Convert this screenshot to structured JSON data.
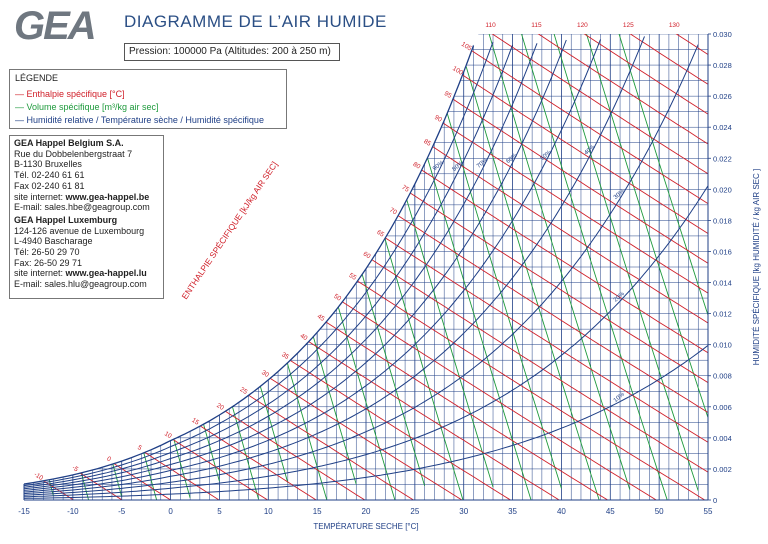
{
  "brand": "GEA",
  "title": "DIAGRAMME DE L’AIR HUMIDE",
  "pressure_label": "Pression: 100000 Pa (Altitudes: 200 à 250 m)",
  "legend": {
    "title": "LÉGENDE",
    "items": [
      {
        "text": "— Enthalpie spécifique [°C]",
        "color": "#d0202a"
      },
      {
        "text": "— Volume spécifique [m³/kg air sec]",
        "color": "#1e9a3c"
      },
      {
        "text": "— Humidité relative / Température sèche / Humidité spécifique",
        "color": "#1f3f86"
      }
    ]
  },
  "contacts": [
    {
      "company": "GEA Happel Belgium S.A.",
      "lines": [
        "Rue du Dobbelenbergstraat 7",
        "B-1130 Bruxelles",
        "Tél. 02-240 61 61",
        "Fax 02-240 61 81"
      ],
      "site_prefix": "site internet: ",
      "site": "www.gea-happel.be",
      "email": "E-mail: sales.hbe@geagroup.com"
    },
    {
      "company": "GEA Happel Luxemburg",
      "lines": [
        "124-126 avenue de Luxembourg",
        "L-4940 Bascharage",
        "Tél: 26-50 29 70",
        "Fax: 26-50 29 71"
      ],
      "site_prefix": "site internet: ",
      "site": "www.gea-happel.lu",
      "email": "E-mail: sales.hlu@geagroup.com"
    }
  ],
  "chart_data": {
    "type": "psychrometric",
    "xlabel": "TEMPÉRATURE SECHE [°C]",
    "ylabel": "HUMIDITÉ SPÉCIFIQUE [kg HUMIDITÉ / kg AIR SEC ]",
    "enthalpy_axis_label": "ENTHALPIE SPÉCIFIQUE [kJ/kg AIR SEC]",
    "xlim": [
      -15,
      55
    ],
    "ylim": [
      0,
      0.03
    ],
    "x_ticks": [
      -15,
      -10,
      -5,
      0,
      5,
      10,
      15,
      20,
      25,
      30,
      35,
      40,
      45,
      50,
      55
    ],
    "y_ticks": [
      "0",
      "0.002",
      "0.004",
      "0.006",
      "0.008",
      "0.010",
      "0.012",
      "0.014",
      "0.016",
      "0.018",
      "0.020",
      "0.022",
      "0.024",
      "0.026",
      "0.028",
      "0.030"
    ],
    "enthalpy_labels": [
      -10,
      -5,
      0,
      5,
      10,
      15,
      20,
      25,
      30,
      35,
      40,
      45,
      50,
      55,
      60,
      65,
      70,
      75,
      80,
      85,
      90,
      95,
      100,
      105,
      110,
      115,
      120,
      125,
      130
    ],
    "relative_humidity": [
      0.1,
      0.2,
      0.3,
      0.4,
      0.5,
      0.6,
      0.7,
      0.8,
      0.9,
      1.0
    ],
    "rh_labels": [
      "10%",
      "20%",
      "30%",
      "40%",
      "50%",
      "60%",
      "70%",
      "80%",
      "90%"
    ],
    "specific_volume": [
      0.75,
      0.76,
      0.77,
      0.78,
      0.79,
      0.8,
      0.81,
      0.82,
      0.83,
      0.84,
      0.85,
      0.86,
      0.87,
      0.88,
      0.89,
      0.9,
      0.91,
      0.92,
      0.93,
      0.94,
      0.95,
      0.96
    ],
    "colors": {
      "enthalpy": "#d0202a",
      "volume": "#1e9a3c",
      "rh": "#1f3f86",
      "grid": "#1f3f86"
    }
  }
}
